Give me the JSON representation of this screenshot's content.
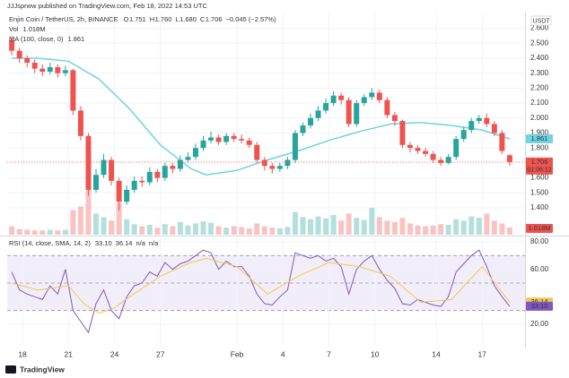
{
  "header": {
    "publisher": "JJJsprww published on TradingView.com, Feb 18, 2022 14:53 UTC",
    "footer": "TradingView"
  },
  "chart_data": {
    "type": "candlestick",
    "title": "Enjin Coin / TetherUS, 2h, BINANCE",
    "ohlc": [
      {
        "label": "O",
        "text": "1.751"
      },
      {
        "label": "H",
        "text": "1.760"
      },
      {
        "label": "L",
        "text": "1.680"
      },
      {
        "label": "C",
        "text": "1.706"
      }
    ],
    "change": "−0.045 (−2.57%)",
    "currency": "USDT",
    "up_color": "#26a69a",
    "down_color": "#ef5350",
    "x": [
      0.3,
      0.8,
      1.3,
      1.8,
      2.3,
      2.8,
      3.3,
      3.8,
      4.3,
      4.8,
      5.3,
      5.8,
      6.3,
      6.8,
      7.3,
      7.8,
      8.3,
      8.8,
      9.3,
      9.8,
      10.3,
      10.8,
      11.3,
      11.8,
      12.3,
      12.8,
      13.3,
      13.8,
      14.3,
      14.8,
      15.3,
      15.8,
      16.3,
      16.8,
      17.3,
      17.8,
      18.3,
      18.8,
      19.3,
      19.8,
      20.3,
      20.8,
      21.3,
      21.8,
      22.3,
      22.8,
      23.3,
      23.8,
      24.3,
      24.8,
      25.3,
      25.8,
      26.3,
      26.8,
      27.3,
      27.8,
      28.3,
      28.8,
      29.3,
      29.8,
      30.3,
      30.8,
      31.3,
      31.8,
      32.3,
      32.8
    ],
    "open": [
      2.52,
      2.45,
      2.4,
      2.37,
      2.33,
      2.31,
      2.34,
      2.3,
      2.32,
      2.05,
      1.88,
      1.52,
      1.62,
      1.72,
      1.58,
      1.44,
      1.52,
      1.58,
      1.57,
      1.64,
      1.6,
      1.68,
      1.66,
      1.72,
      1.74,
      1.8,
      1.85,
      1.87,
      1.84,
      1.88,
      1.86,
      1.85,
      1.82,
      1.72,
      1.68,
      1.66,
      1.68,
      1.72,
      1.9,
      1.95,
      2.0,
      2.05,
      2.1,
      2.15,
      2.12,
      1.96,
      2.1,
      2.14,
      2.17,
      2.12,
      2.02,
      1.98,
      1.82,
      1.8,
      1.78,
      1.76,
      1.72,
      1.7,
      1.74,
      1.86,
      1.92,
      1.98,
      2.0,
      1.96,
      1.9,
      1.751
    ],
    "high": [
      2.55,
      2.47,
      2.42,
      2.39,
      2.36,
      2.37,
      2.36,
      2.35,
      2.33,
      2.08,
      1.9,
      1.66,
      1.76,
      1.74,
      1.6,
      1.55,
      1.61,
      1.61,
      1.67,
      1.66,
      1.7,
      1.7,
      1.75,
      1.77,
      1.83,
      1.88,
      1.91,
      1.89,
      1.9,
      1.9,
      1.89,
      1.87,
      1.84,
      1.74,
      1.7,
      1.7,
      1.74,
      1.92,
      1.97,
      2.03,
      2.08,
      2.13,
      2.18,
      2.17,
      2.14,
      2.12,
      2.16,
      2.2,
      2.19,
      2.14,
      2.04,
      1.99,
      1.84,
      1.82,
      1.8,
      1.78,
      1.74,
      1.76,
      1.88,
      1.94,
      2.0,
      2.02,
      2.03,
      1.98,
      1.92,
      1.76
    ],
    "low": [
      2.42,
      2.37,
      2.34,
      2.3,
      2.28,
      2.29,
      2.27,
      2.28,
      2.02,
      1.85,
      1.48,
      1.5,
      1.6,
      1.55,
      1.38,
      1.42,
      1.5,
      1.54,
      1.55,
      1.57,
      1.58,
      1.63,
      1.64,
      1.7,
      1.72,
      1.78,
      1.83,
      1.82,
      1.82,
      1.84,
      1.83,
      1.8,
      1.7,
      1.65,
      1.63,
      1.64,
      1.66,
      1.7,
      1.88,
      1.93,
      1.98,
      2.03,
      2.08,
      2.09,
      1.94,
      1.94,
      2.08,
      2.12,
      2.1,
      2.0,
      1.95,
      1.8,
      1.77,
      1.76,
      1.74,
      1.7,
      1.68,
      1.69,
      1.72,
      1.84,
      1.9,
      1.96,
      1.94,
      1.88,
      1.76,
      1.68
    ],
    "close": [
      2.45,
      2.4,
      2.37,
      2.33,
      2.31,
      2.34,
      2.3,
      2.32,
      2.05,
      1.88,
      1.52,
      1.62,
      1.72,
      1.58,
      1.44,
      1.52,
      1.58,
      1.57,
      1.64,
      1.6,
      1.68,
      1.66,
      1.72,
      1.74,
      1.8,
      1.85,
      1.87,
      1.84,
      1.88,
      1.86,
      1.85,
      1.82,
      1.72,
      1.68,
      1.66,
      1.68,
      1.72,
      1.9,
      1.95,
      2.0,
      2.05,
      2.1,
      2.15,
      2.12,
      1.96,
      2.1,
      2.14,
      2.17,
      2.12,
      2.02,
      1.98,
      1.82,
      1.8,
      1.78,
      1.76,
      1.72,
      1.7,
      1.74,
      1.86,
      1.92,
      1.98,
      2.0,
      1.96,
      1.9,
      1.78,
      1.706
    ],
    "last_price": {
      "label": "1.706",
      "countdown": "01:06:12"
    },
    "volume": {
      "name": "Vol",
      "label": "1.018M",
      "ylim": [
        0,
        7
      ],
      "values": [
        1.2,
        0.8,
        0.7,
        0.6,
        0.6,
        0.7,
        0.6,
        0.7,
        3.5,
        4.0,
        6.5,
        3.0,
        2.5,
        2.0,
        4.5,
        2.2,
        1.5,
        1.2,
        1.4,
        1.0,
        1.5,
        1.2,
        1.8,
        1.3,
        1.6,
        1.9,
        1.7,
        1.2,
        1.0,
        1.2,
        1.1,
        0.9,
        1.6,
        1.2,
        1.0,
        0.9,
        1.1,
        3.2,
        2.5,
        2.2,
        2.6,
        2.3,
        2.8,
        2.0,
        3.0,
        2.4,
        2.1,
        3.8,
        2.5,
        2.0,
        1.8,
        2.4,
        1.6,
        1.3,
        1.2,
        1.3,
        1.5,
        1.4,
        2.2,
        2.0,
        2.6,
        2.4,
        3.0,
        2.0,
        1.6,
        1.018
      ]
    },
    "ma": {
      "name": "MA (100, close, 0)",
      "label": "1.861",
      "color": "#6fd3e3",
      "x": [
        0.3,
        2,
        4,
        6,
        8,
        10,
        12,
        13,
        15,
        17,
        19,
        21,
        23,
        25,
        27,
        29,
        31,
        32.8
      ],
      "values": [
        2.4,
        2.4,
        2.38,
        2.26,
        2.06,
        1.82,
        1.66,
        1.62,
        1.65,
        1.72,
        1.78,
        1.85,
        1.91,
        1.96,
        1.97,
        1.95,
        1.92,
        1.861
      ]
    },
    "xlim": [
      0,
      33.8
    ],
    "ylim": [
      1.22,
      2.654
    ],
    "yticks": [
      {
        "value": 1.4,
        "label": "1.400"
      },
      {
        "value": 1.5,
        "label": "1.500"
      },
      {
        "value": 1.6,
        "label": "1.600"
      },
      {
        "value": 1.7,
        "label": "1.700"
      },
      {
        "value": 1.8,
        "label": "1.800"
      },
      {
        "value": 1.9,
        "label": "1.900"
      },
      {
        "value": 2.0,
        "label": "2.000"
      },
      {
        "value": 2.1,
        "label": "2.100"
      },
      {
        "value": 2.2,
        "label": "2.200"
      },
      {
        "value": 2.3,
        "label": "2.300"
      },
      {
        "value": 2.4,
        "label": "2.400"
      },
      {
        "value": 2.5,
        "label": "2.500"
      },
      {
        "value": 2.6,
        "label": "2.600"
      }
    ],
    "xticks": [
      {
        "value": 1,
        "label": "18"
      },
      {
        "value": 4,
        "label": "21"
      },
      {
        "value": 7,
        "label": "24"
      },
      {
        "value": 10,
        "label": "27"
      },
      {
        "value": 15,
        "label": "Feb"
      },
      {
        "value": 18,
        "label": "4"
      },
      {
        "value": 21,
        "label": "7"
      },
      {
        "value": 24,
        "label": "10"
      },
      {
        "value": 28,
        "label": "14"
      },
      {
        "value": 31,
        "label": "17"
      }
    ],
    "grid": true,
    "rsi": {
      "name": "RSI (14, close, SMA, 14, 2)",
      "color": "#7e57c2",
      "label": "33.10",
      "na": [
        "n/a",
        "n/a"
      ],
      "values": [
        58,
        45,
        42,
        40,
        38,
        48,
        42,
        60,
        30,
        22,
        14,
        35,
        45,
        30,
        24,
        40,
        48,
        50,
        58,
        55,
        65,
        60,
        64,
        66,
        70,
        74,
        72,
        60,
        66,
        62,
        62,
        55,
        42,
        35,
        34,
        40,
        45,
        72,
        70,
        68,
        70,
        66,
        68,
        62,
        42,
        60,
        66,
        70,
        60,
        52,
        46,
        35,
        34,
        38,
        36,
        34,
        33,
        40,
        58,
        64,
        70,
        74,
        62,
        48,
        40,
        33.1
      ],
      "ma": {
        "label": "36.14",
        "color": "#f2c94c",
        "x": [
          0.3,
          2,
          4,
          5,
          6,
          7,
          8,
          10,
          12,
          13,
          15,
          17,
          19,
          21,
          23,
          25,
          27,
          29,
          31,
          32.8
        ],
        "values": [
          50,
          45,
          48,
          35,
          28,
          32,
          40,
          55,
          65,
          68,
          62,
          42,
          55,
          65,
          62,
          55,
          36,
          38,
          62,
          36.14
        ]
      },
      "ylim": [
        5,
        83
      ],
      "yticks": [
        {
          "value": 20,
          "label": "20.00"
        },
        {
          "value": 60,
          "label": "60.00"
        },
        {
          "value": 80,
          "label": "80.00"
        }
      ],
      "bands": [
        30,
        50,
        70
      ]
    }
  }
}
